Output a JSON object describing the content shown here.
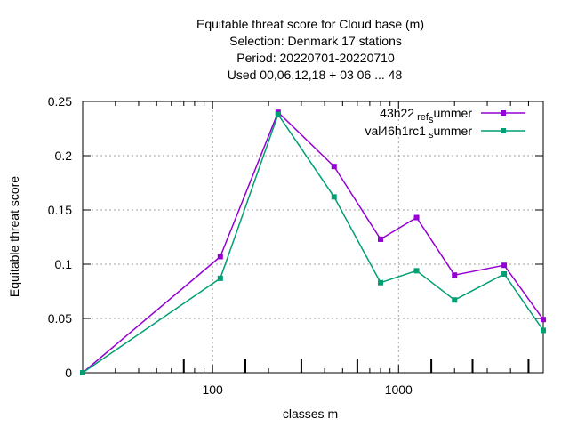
{
  "chart_data": {
    "type": "line",
    "title_lines": [
      "Equitable threat score  for Cloud base (m)",
      "Selection: Denmark     17 stations",
      "Period: 20220701-20220710",
      "Used  00,06,12,18  + 03 06 ... 48"
    ],
    "xlabel": "classes m",
    "ylabel": "Equitable threat score",
    "x_scale": "log",
    "xlim": [
      20,
      6000
    ],
    "ylim": [
      0,
      0.25
    ],
    "x_ticks": [
      {
        "value": 100,
        "label": "100"
      },
      {
        "value": 1000,
        "label": "1000"
      }
    ],
    "y_ticks": [
      {
        "value": 0,
        "label": "0"
      },
      {
        "value": 0.05,
        "label": "0.05"
      },
      {
        "value": 0.1,
        "label": "0.1"
      },
      {
        "value": 0.15,
        "label": "0.15"
      },
      {
        "value": 0.2,
        "label": "0.2"
      },
      {
        "value": 0.25,
        "label": "0.25"
      }
    ],
    "grid": true,
    "legend_position": "top-right",
    "x": [
      20,
      110,
      225,
      450,
      800,
      1250,
      2000,
      3700,
      6000
    ],
    "series": [
      {
        "name": "43h22_ref_summer",
        "legend_parts": {
          "a": "43h22",
          "b": "ref",
          "c": "s",
          "d": "ummer"
        },
        "color": "#9400d3",
        "values": [
          0.0,
          0.107,
          0.24,
          0.19,
          0.123,
          0.143,
          0.09,
          0.099,
          0.049
        ]
      },
      {
        "name": "val46h1rc1_summer",
        "legend_parts": {
          "a": "val46h1rc1",
          "c": "s",
          "d": "ummer"
        },
        "color": "#009e73",
        "values": [
          0.0,
          0.087,
          0.238,
          0.162,
          0.083,
          0.094,
          0.067,
          0.091,
          0.039
        ]
      }
    ]
  }
}
